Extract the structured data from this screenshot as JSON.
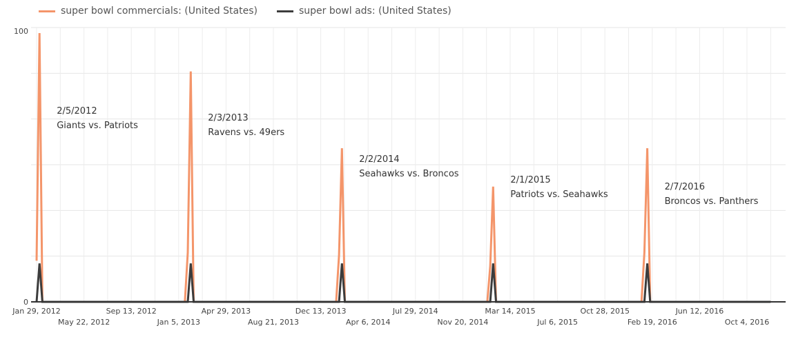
{
  "legend": {
    "items": [
      {
        "label": "super bowl commercials: (United States)",
        "color": "#f4956a"
      },
      {
        "label": "super bowl ads: (United States)",
        "color": "#3c3c3c"
      }
    ]
  },
  "chart_data": {
    "type": "line",
    "ylim": [
      0,
      100
    ],
    "y_ticks": [
      "0",
      "100"
    ],
    "x_range": [
      "2012-01-29",
      "2016-11-30"
    ],
    "grid": true,
    "legend_placement": "top-left",
    "x_ticks": [
      {
        "date": "2012-01-29",
        "label": "Jan 29, 2012",
        "row": 0
      },
      {
        "date": "2012-05-22",
        "label": "May 22, 2012",
        "row": 1
      },
      {
        "date": "2012-09-13",
        "label": "Sep 13, 2012",
        "row": 0
      },
      {
        "date": "2013-01-05",
        "label": "Jan 5, 2013",
        "row": 1
      },
      {
        "date": "2013-04-29",
        "label": "Apr 29, 2013",
        "row": 0
      },
      {
        "date": "2013-08-21",
        "label": "Aug 21, 2013",
        "row": 1
      },
      {
        "date": "2013-12-13",
        "label": "Dec 13, 2013",
        "row": 0
      },
      {
        "date": "2014-04-06",
        "label": "Apr 6, 2014",
        "row": 1
      },
      {
        "date": "2014-07-29",
        "label": "Jul 29, 2014",
        "row": 0
      },
      {
        "date": "2014-11-20",
        "label": "Nov 20, 2014",
        "row": 1
      },
      {
        "date": "2015-03-14",
        "label": "Mar 14, 2015",
        "row": 0
      },
      {
        "date": "2015-07-06",
        "label": "Jul 6, 2015",
        "row": 1
      },
      {
        "date": "2015-10-28",
        "label": "Oct 28, 2015",
        "row": 0
      },
      {
        "date": "2016-02-19",
        "label": "Feb 19, 2016",
        "row": 1
      },
      {
        "date": "2016-06-12",
        "label": "Jun 12, 2016",
        "row": 0
      },
      {
        "date": "2016-10-04",
        "label": "Oct 4, 2016",
        "row": 1
      }
    ],
    "series": [
      {
        "name": "super bowl commercials: (United States)",
        "color": "#f4956a",
        "points": [
          {
            "x": "2012-01-29",
            "y": 15
          },
          {
            "x": "2012-02-05",
            "y": 98
          },
          {
            "x": "2012-02-12",
            "y": 0
          },
          {
            "x": "2013-01-20",
            "y": 0
          },
          {
            "x": "2013-01-27",
            "y": 18
          },
          {
            "x": "2013-02-03",
            "y": 84
          },
          {
            "x": "2013-02-10",
            "y": 0
          },
          {
            "x": "2014-01-19",
            "y": 0
          },
          {
            "x": "2014-01-26",
            "y": 17
          },
          {
            "x": "2014-02-02",
            "y": 56
          },
          {
            "x": "2014-02-09",
            "y": 0
          },
          {
            "x": "2015-01-18",
            "y": 0
          },
          {
            "x": "2015-01-25",
            "y": 13
          },
          {
            "x": "2015-02-01",
            "y": 42
          },
          {
            "x": "2015-02-08",
            "y": 0
          },
          {
            "x": "2016-01-24",
            "y": 0
          },
          {
            "x": "2016-01-31",
            "y": 18
          },
          {
            "x": "2016-02-07",
            "y": 56
          },
          {
            "x": "2016-02-14",
            "y": 0
          },
          {
            "x": "2016-11-30",
            "y": 0
          }
        ]
      },
      {
        "name": "super bowl ads: (United States)",
        "color": "#3c3c3c",
        "points": [
          {
            "x": "2012-01-29",
            "y": 0
          },
          {
            "x": "2012-02-05",
            "y": 14
          },
          {
            "x": "2012-02-12",
            "y": 0
          },
          {
            "x": "2013-01-27",
            "y": 0
          },
          {
            "x": "2013-02-03",
            "y": 14
          },
          {
            "x": "2013-02-10",
            "y": 0
          },
          {
            "x": "2014-01-26",
            "y": 0
          },
          {
            "x": "2014-02-02",
            "y": 14
          },
          {
            "x": "2014-02-09",
            "y": 0
          },
          {
            "x": "2015-01-25",
            "y": 0
          },
          {
            "x": "2015-02-01",
            "y": 14
          },
          {
            "x": "2015-02-08",
            "y": 0
          },
          {
            "x": "2016-01-31",
            "y": 0
          },
          {
            "x": "2016-02-07",
            "y": 14
          },
          {
            "x": "2016-02-14",
            "y": 0
          },
          {
            "x": "2016-11-30",
            "y": 0
          }
        ]
      }
    ],
    "annotations": [
      {
        "x": "2012-02-05",
        "line1": "2/5/2012",
        "line2": "Giants vs. Patriots"
      },
      {
        "x": "2013-02-03",
        "line1": "2/3/2013",
        "line2": "Ravens vs. 49ers"
      },
      {
        "x": "2014-02-02",
        "line1": "2/2/2014",
        "line2": "Seahawks vs. Broncos"
      },
      {
        "x": "2015-02-01",
        "line1": "2/1/2015",
        "line2": "Patriots vs. Seahawks"
      },
      {
        "x": "2016-02-07",
        "line1": "2/7/2016",
        "line2": "Broncos vs. Panthers"
      }
    ]
  }
}
